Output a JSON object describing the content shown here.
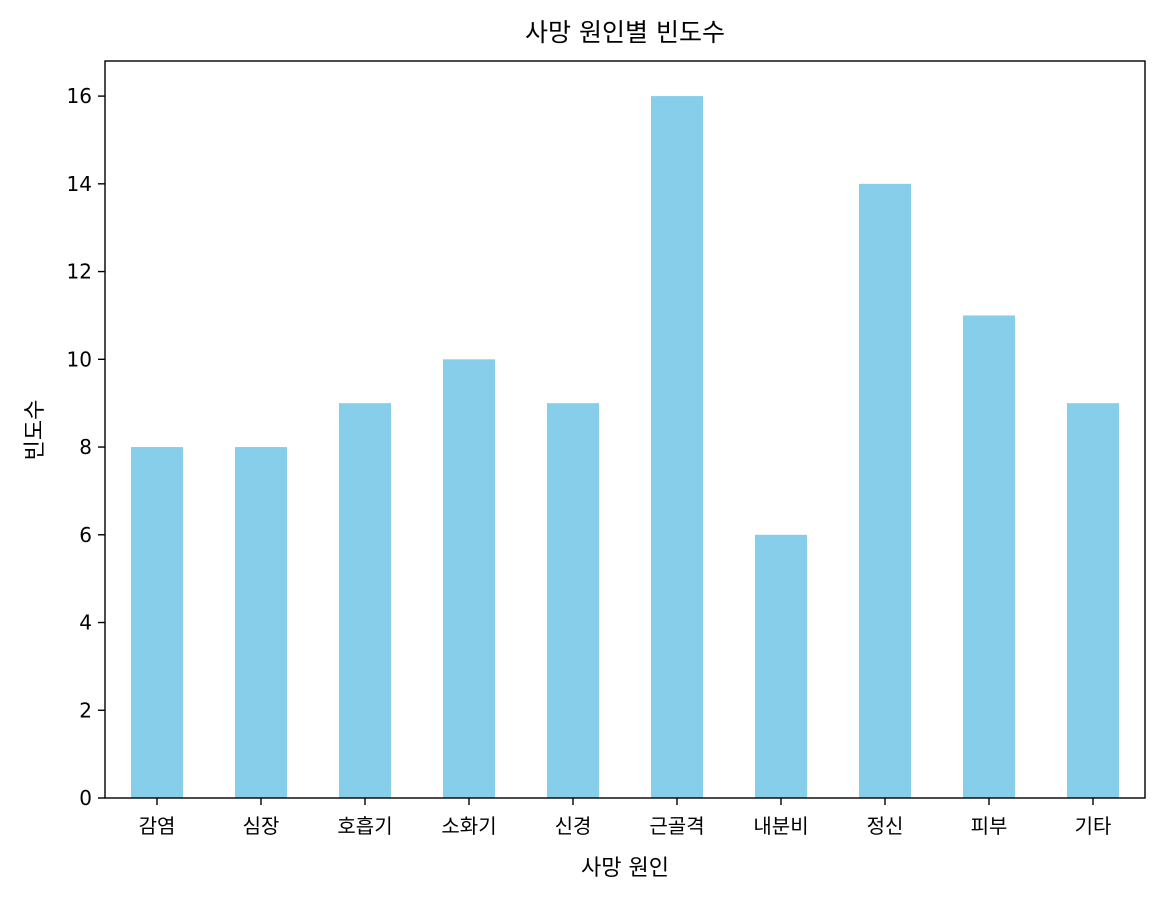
{
  "colors": {
    "bar": "#87ceeb",
    "axis": "#000000",
    "background": "#ffffff"
  },
  "chart_data": {
    "type": "bar",
    "title": "사망 원인별 빈도수",
    "xlabel": "사망 원인",
    "ylabel": "빈도수",
    "categories": [
      "감염",
      "심장",
      "호흡기",
      "소화기",
      "신경",
      "근골격",
      "내분비",
      "정신",
      "피부",
      "기타"
    ],
    "values": [
      8,
      8,
      9,
      10,
      9,
      16,
      6,
      14,
      11,
      9
    ],
    "ylim": [
      0,
      16.8
    ],
    "yticks": [
      0,
      2,
      4,
      6,
      8,
      10,
      12,
      14,
      16
    ],
    "grid": false,
    "legend": "none"
  }
}
